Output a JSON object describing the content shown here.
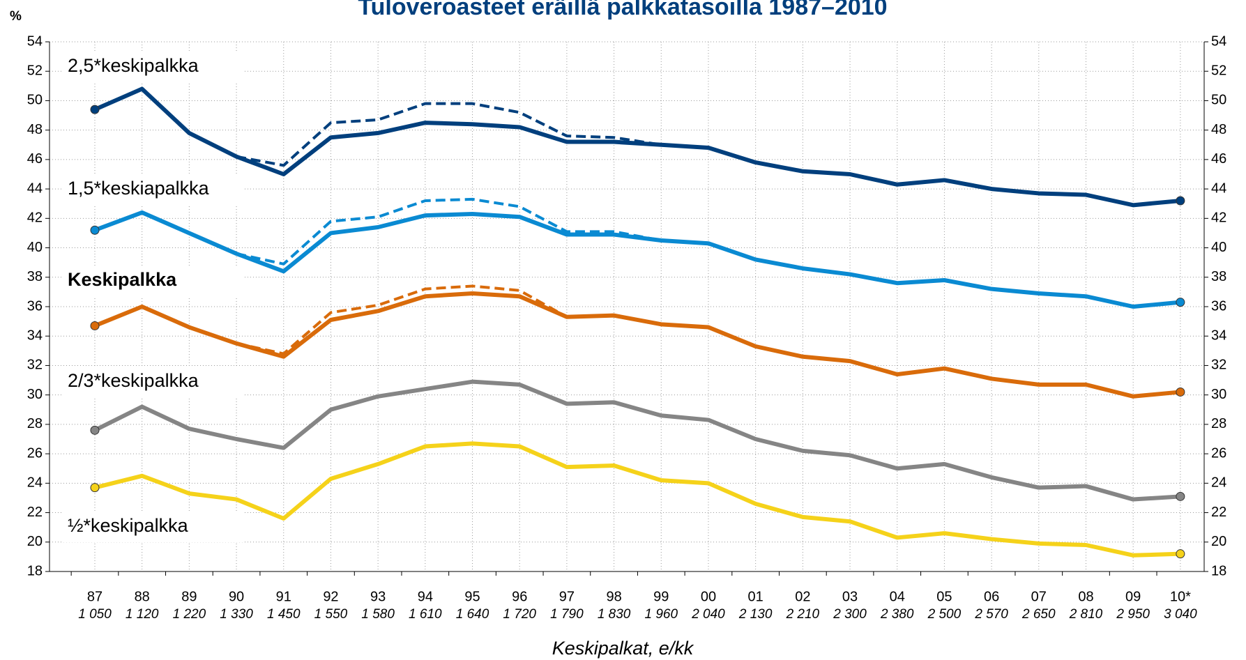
{
  "chart_data": {
    "type": "line",
    "title": "Tuloveroasteet eräillä palkkatasoilla 1987–2010",
    "y_label": "%",
    "x_label": "Keskipalkat, e/kk",
    "categories": [
      "87",
      "88",
      "89",
      "90",
      "91",
      "92",
      "93",
      "94",
      "95",
      "96",
      "97",
      "98",
      "99",
      "00",
      "01",
      "02",
      "03",
      "04",
      "05",
      "06",
      "07",
      "08",
      "09",
      "10*"
    ],
    "salaries": [
      "1 050",
      "1 120",
      "1 220",
      "1 330",
      "1 450",
      "1 550",
      "1 580",
      "1 610",
      "1 640",
      "1 720",
      "1 790",
      "1 830",
      "1 960",
      "2 040",
      "2 130",
      "2 210",
      "2 300",
      "2 380",
      "2 500",
      "2 570",
      "2 650",
      "2 810",
      "2 950",
      "3 040"
    ],
    "ylim": [
      18,
      54
    ],
    "yticks": [
      18,
      20,
      22,
      24,
      26,
      28,
      30,
      32,
      34,
      36,
      38,
      40,
      42,
      44,
      46,
      48,
      50,
      52,
      54
    ],
    "grid": true,
    "series": [
      {
        "name": "2,5*keskipalkka",
        "color": "#003f7d",
        "values": [
          49.4,
          50.8,
          47.8,
          46.2,
          45.0,
          47.5,
          47.8,
          48.5,
          48.4,
          48.2,
          47.2,
          47.2,
          47.0,
          46.8,
          45.8,
          45.2,
          45.0,
          44.3,
          44.6,
          44.0,
          43.7,
          43.6,
          42.9,
          43.2
        ]
      },
      {
        "color": "#003f7d",
        "dashed": true,
        "values": [
          null,
          null,
          null,
          46.2,
          45.6,
          48.5,
          48.7,
          49.8,
          49.8,
          49.2,
          47.6,
          47.5,
          47.0,
          null,
          null,
          null,
          null,
          null,
          null,
          null,
          null,
          null,
          null,
          null
        ]
      },
      {
        "name": "1,5*keskiapalkka",
        "color": "#0a8ad2",
        "values": [
          41.2,
          42.4,
          41.0,
          39.6,
          38.4,
          41.0,
          41.4,
          42.2,
          42.3,
          42.1,
          40.9,
          40.9,
          40.5,
          40.3,
          39.2,
          38.6,
          38.2,
          37.6,
          37.8,
          37.2,
          36.9,
          36.7,
          36.0,
          36.3
        ]
      },
      {
        "color": "#0a8ad2",
        "dashed": true,
        "values": [
          null,
          null,
          null,
          39.6,
          38.9,
          41.8,
          42.1,
          43.2,
          43.3,
          42.8,
          41.1,
          41.1,
          40.5,
          null,
          null,
          null,
          null,
          null,
          null,
          null,
          null,
          null,
          null,
          null
        ]
      },
      {
        "name": "Keskipalkka",
        "color": "#d96b0a",
        "bold": true,
        "values": [
          34.7,
          36.0,
          34.6,
          33.5,
          32.6,
          35.1,
          35.7,
          36.7,
          36.9,
          36.7,
          35.3,
          35.4,
          34.8,
          34.6,
          33.3,
          32.6,
          32.3,
          31.4,
          31.8,
          31.1,
          30.7,
          30.7,
          29.9,
          30.2
        ]
      },
      {
        "color": "#d96b0a",
        "dashed": true,
        "values": [
          null,
          null,
          null,
          33.5,
          32.8,
          35.6,
          36.1,
          37.2,
          37.4,
          37.1,
          35.3,
          null,
          null,
          null,
          null,
          null,
          null,
          null,
          null,
          null,
          null,
          null,
          null,
          null
        ]
      },
      {
        "name": "2/3*keskipalkka",
        "color": "#858585",
        "values": [
          27.6,
          29.2,
          27.7,
          27.0,
          26.4,
          29.0,
          29.9,
          30.4,
          30.9,
          30.7,
          29.4,
          29.5,
          28.6,
          28.3,
          27.0,
          26.2,
          25.9,
          25.0,
          25.3,
          24.4,
          23.7,
          23.8,
          22.9,
          23.1
        ]
      },
      {
        "name": "½*keskipalkka",
        "color": "#f5d21a",
        "values": [
          23.7,
          24.5,
          23.3,
          22.9,
          21.6,
          24.3,
          25.3,
          26.5,
          26.7,
          26.5,
          25.1,
          25.2,
          24.2,
          24.0,
          22.6,
          21.7,
          21.4,
          20.3,
          20.6,
          20.2,
          19.9,
          19.8,
          19.1,
          19.2
        ]
      }
    ]
  }
}
